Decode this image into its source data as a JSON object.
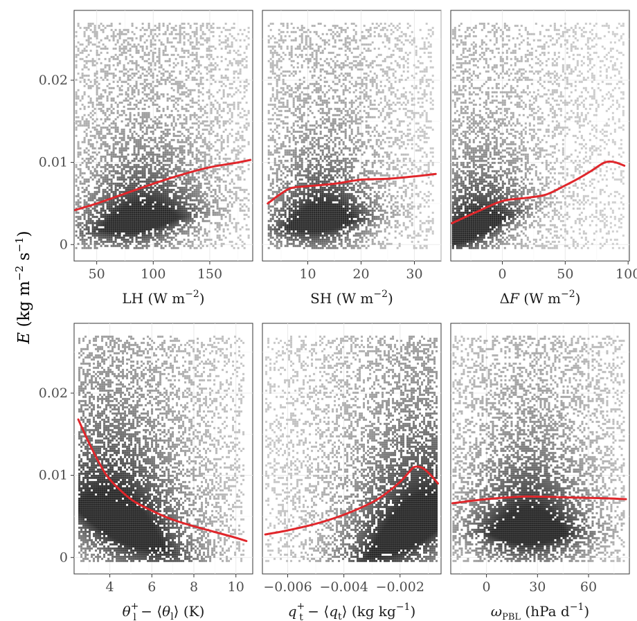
{
  "y_axis_title": {
    "main": "E",
    "unit_open": "(kg m",
    "exp1": "−2",
    "unit_mid": " s",
    "exp2": "−1",
    "unit_close": ")"
  },
  "colors": {
    "background": "#ffffff",
    "grid": "#ebebeb",
    "frame": "#333333",
    "smooth_line": "#e0262b",
    "density_dark": "#2a2a2a",
    "density_light": "#d4d4d4"
  },
  "chart_data": [
    {
      "type": "scatter",
      "panel": "LH",
      "xlabel": {
        "pre": "LH (W m",
        "sup": "−2",
        "post": ")"
      },
      "xlim": [
        30,
        188
      ],
      "ylim": [
        -0.002,
        0.0285
      ],
      "xticks": [
        50,
        100,
        150
      ],
      "xtick_labels": [
        "50",
        "100",
        "150"
      ],
      "yticks": [
        0,
        0.01,
        0.02
      ],
      "ytick_labels": [
        "0",
        "0.01",
        "0.02"
      ],
      "grid": true,
      "density": {
        "x_range": [
          31,
          186
        ],
        "y_range": [
          -0.0006,
          0.027
        ],
        "mode_x": 88,
        "mode_y": 0.0025,
        "x_spread": 38,
        "y_spread": 0.0024,
        "x_trend": 2.2e-05
      },
      "smooth_line": {
        "x": [
          31,
          50,
          75,
          100,
          125,
          150,
          175,
          186
        ],
        "y": [
          0.0042,
          0.005,
          0.0062,
          0.0074,
          0.0085,
          0.0094,
          0.01,
          0.0103
        ]
      }
    },
    {
      "type": "scatter",
      "panel": "SH",
      "xlabel": {
        "pre": "SH (W m",
        "sup": "−2",
        "post": ")"
      },
      "xlim": [
        1.5,
        35
      ],
      "ylim": [
        -0.002,
        0.0285
      ],
      "xticks": [
        10,
        20,
        30
      ],
      "xtick_labels": [
        "10",
        "20",
        "30"
      ],
      "yticks": [
        0,
        0.01,
        0.02
      ],
      "ytick_labels": [
        "0",
        "0.01",
        "0.02"
      ],
      "grid": true,
      "density": {
        "x_range": [
          2.5,
          34
        ],
        "y_range": [
          -0.0006,
          0.027
        ],
        "mode_x": 12.5,
        "mode_y": 0.0025,
        "x_spread": 7,
        "y_spread": 0.0024,
        "x_trend": 8e-05
      },
      "smooth_line": {
        "x": [
          2.5,
          5,
          7,
          10,
          15,
          20,
          25,
          30,
          34
        ],
        "y": [
          0.005,
          0.0062,
          0.0069,
          0.0071,
          0.0074,
          0.0079,
          0.008,
          0.0083,
          0.0086
        ]
      }
    },
    {
      "type": "scatter",
      "panel": "ΔF",
      "xlabel": {
        "pre": "ΔF (W m",
        "sup": "−2",
        "post": ")"
      },
      "xlim": [
        -41,
        101
      ],
      "ylim": [
        -0.002,
        0.0285
      ],
      "xticks": [
        0,
        50,
        100
      ],
      "xtick_labels": [
        "0",
        "50",
        "100"
      ],
      "yticks": [
        0,
        0.01,
        0.02
      ],
      "ytick_labels": [
        "0",
        "0.01",
        "0.02"
      ],
      "grid": true,
      "density": {
        "x_range": [
          -40,
          98
        ],
        "y_range": [
          -0.0006,
          0.027
        ],
        "mode_x": -25,
        "mode_y": 0.0015,
        "x_spread": 30,
        "y_spread": 0.0022,
        "x_trend": 6e-05
      },
      "smooth_line": {
        "x": [
          -40,
          -20,
          0,
          20,
          35,
          50,
          60,
          70,
          80,
          85,
          90,
          97
        ],
        "y": [
          0.0026,
          0.004,
          0.0053,
          0.0057,
          0.0061,
          0.0072,
          0.008,
          0.0089,
          0.0099,
          0.0101,
          0.01,
          0.0096
        ]
      }
    },
    {
      "type": "scatter",
      "panel": "θl",
      "xlabel": {
        "pre": "θ",
        "sup": "+",
        "sub": "l",
        "mid": " − ⟨θ",
        "sub2": "l",
        "post": "⟩ (K)"
      },
      "xlim": [
        2.3,
        10.8
      ],
      "ylim": [
        -0.002,
        0.0285
      ],
      "xticks": [
        4,
        6,
        8,
        10
      ],
      "xtick_labels": [
        "4",
        "6",
        "8",
        "10"
      ],
      "yticks": [
        0,
        0.01,
        0.02
      ],
      "ytick_labels": [
        "0",
        "0.01",
        "0.02"
      ],
      "grid": true,
      "density": {
        "x_range": [
          2.5,
          10.5
        ],
        "y_range": [
          -0.0006,
          0.027
        ],
        "mode_x": 4.5,
        "mode_y": 0.0035,
        "x_spread": 2.4,
        "y_spread": 0.004,
        "x_trend": -0.0012
      },
      "smooth_line": {
        "x": [
          2.5,
          3,
          3.5,
          4,
          5,
          6,
          7,
          8,
          9,
          10,
          10.5
        ],
        "y": [
          0.0168,
          0.014,
          0.0115,
          0.0095,
          0.0071,
          0.0057,
          0.0046,
          0.0038,
          0.0031,
          0.0024,
          0.002
        ]
      }
    },
    {
      "type": "scatter",
      "panel": "qt",
      "xlabel": {
        "pre": "q",
        "sup": "+",
        "sub": "t",
        "mid": " − ⟨q",
        "sub2": "t",
        "post": "⟩ (kg kg",
        "sup2": "−1",
        "close": ")"
      },
      "xlim": [
        -0.0069,
        -0.00054
      ],
      "ylim": [
        -0.002,
        0.0285
      ],
      "xticks": [
        -0.006,
        -0.004,
        -0.002
      ],
      "xtick_labels": [
        "−0.006",
        "−0.004",
        "−0.002"
      ],
      "yticks": [
        0,
        0.01,
        0.02
      ],
      "ytick_labels": [
        "0",
        "0.01",
        "0.02"
      ],
      "grid": true,
      "density": {
        "x_range": [
          -0.0068,
          -0.00065
        ],
        "y_range": [
          -0.0006,
          0.027
        ],
        "mode_x": -0.0015,
        "mode_y": 0.003,
        "x_spread": 0.0018,
        "y_spread": 0.004,
        "x_trend": 1.8
      },
      "smooth_line": {
        "x": [
          -0.0068,
          -0.006,
          -0.005,
          -0.004,
          -0.003,
          -0.0025,
          -0.002,
          -0.0017,
          -0.0015,
          -0.0012,
          -0.0009,
          -0.00065
        ],
        "y": [
          0.0028,
          0.0033,
          0.0041,
          0.0052,
          0.0067,
          0.0078,
          0.0092,
          0.0103,
          0.011,
          0.0109,
          0.01,
          0.009
        ]
      }
    },
    {
      "type": "scatter",
      "panel": "ωPBL",
      "xlabel": {
        "pre": "ω",
        "sub": "PBL",
        "post": " (hPa d",
        "sup": "−1",
        "close": ")"
      },
      "xlim": [
        -21,
        84
      ],
      "ylim": [
        -0.002,
        0.0285
      ],
      "xticks": [
        0,
        30,
        60
      ],
      "xtick_labels": [
        "0",
        "30",
        "60"
      ],
      "yticks": [
        0,
        0.01,
        0.02
      ],
      "ytick_labels": [
        "0",
        "0.01",
        "0.02"
      ],
      "grid": true,
      "density": {
        "x_range": [
          -20,
          82
        ],
        "y_range": [
          -0.0006,
          0.027
        ],
        "mode_x": 25,
        "mode_y": 0.0028,
        "x_spread": 25,
        "y_spread": 0.003,
        "x_trend": 0
      },
      "smooth_line": {
        "x": [
          -20,
          0,
          20,
          30,
          50,
          70,
          82
        ],
        "y": [
          0.0066,
          0.0071,
          0.0074,
          0.0074,
          0.0073,
          0.0072,
          0.0071
        ]
      }
    }
  ]
}
